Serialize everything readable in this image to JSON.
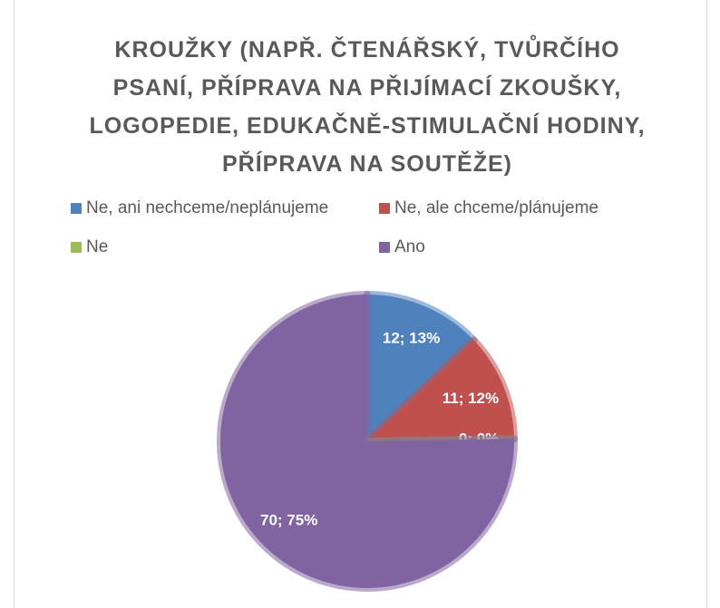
{
  "chart_data": {
    "type": "pie",
    "title": "KROUŽKY (NAPŘ. ČTENÁŘSKÝ, TVŮRČÍHO PSANÍ, PŘÍPRAVA NA PŘIJÍMACÍ ZKOUŠKY, LOGOPEDIE, EDUKAČNĚ-STIMULAČNÍ HODINY, PŘÍPRAVA NA SOUTĚŽE)",
    "categories": [
      "Ne, ani nechceme/neplánujeme",
      "Ne, ale chceme/plánujeme",
      "Ne",
      "Ano"
    ],
    "values": [
      12,
      11,
      0,
      70
    ],
    "value_labels": [
      "12; 13%",
      "11; 12%",
      "0; 0%",
      "70; 75%"
    ],
    "colors": [
      "#4f81bd",
      "#c0504d",
      "#9bbb59",
      "#8064a2"
    ],
    "legend": "top"
  }
}
